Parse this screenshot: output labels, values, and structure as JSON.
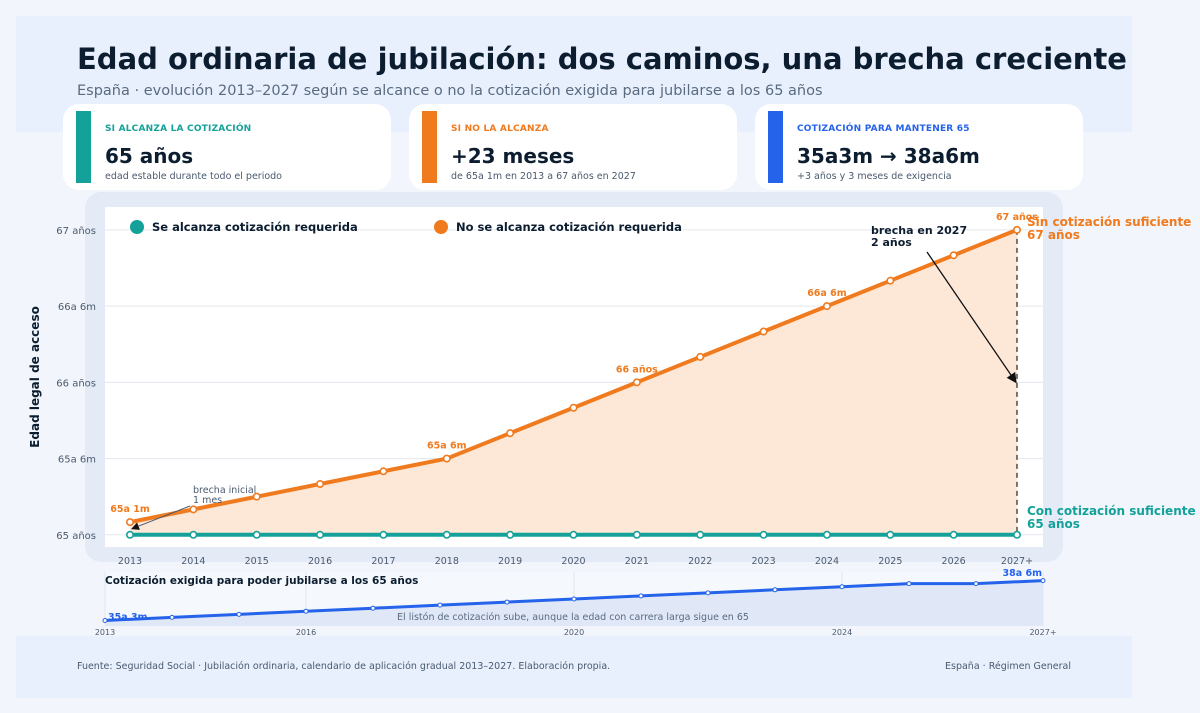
{
  "header": {
    "title": "Edad ordinaria de jubilación: dos caminos, una brecha creciente",
    "subtitle": "España · evolución 2013–2027 según se alcance o no la cotización exigida para jubilarse a los 65 años"
  },
  "cards": [
    {
      "kicker": "SI ALCANZA LA COTIZACIÓN",
      "value": "65 años",
      "note": "edad estable durante todo el periodo",
      "color": "#14a19a"
    },
    {
      "kicker": "SI NO LA ALCANZA",
      "value": "+23 meses",
      "note": "de 65a 1m en 2013 a 67 años en 2027",
      "color": "#f07a1e"
    },
    {
      "kicker": "COTIZACIÓN PARA MANTENER 65",
      "value": "35a3m → 38a6m",
      "note": "+3 años y 3 meses de exigencia",
      "color": "#2563eb"
    }
  ],
  "footer": {
    "source": "Fuente: Seguridad Social · Jubilación ordinaria, calendario de aplicación gradual 2013–2027. Elaboración propia.",
    "scope": "España · Régimen General"
  },
  "chart_data": [
    {
      "type": "line",
      "ylabel": "Edad legal de acceso",
      "x": [
        "2013",
        "2014",
        "2015",
        "2016",
        "2017",
        "2018",
        "2019",
        "2020",
        "2021",
        "2022",
        "2023",
        "2024",
        "2025",
        "2026",
        "2027+"
      ],
      "y_unit": "years",
      "ylim": [
        64.92,
        67.15
      ],
      "yticks": [
        {
          "value": 65,
          "label": "65 años"
        },
        {
          "value": 65.5,
          "label": "65a 6m"
        },
        {
          "value": 66,
          "label": "66 años"
        },
        {
          "value": 66.5,
          "label": "66a 6m"
        },
        {
          "value": 67,
          "label": "67 años"
        }
      ],
      "grid": true,
      "legend_position": "top-left",
      "series": [
        {
          "name": "Se alcanza cotización requerida",
          "color": "#14a19a",
          "values": [
            65,
            65,
            65,
            65,
            65,
            65,
            65,
            65,
            65,
            65,
            65,
            65,
            65,
            65,
            65
          ]
        },
        {
          "name": "No se alcanza cotización requerida",
          "color": "#f07a1e",
          "values": [
            65.0833,
            65.1667,
            65.25,
            65.3333,
            65.4167,
            65.5,
            65.6667,
            65.8333,
            66,
            66.1667,
            66.3333,
            66.5,
            66.6667,
            66.8333,
            67
          ]
        }
      ],
      "point_labels": [
        {
          "x": "2013",
          "series": 1,
          "text": "65a 1m"
        },
        {
          "x": "2018",
          "series": 1,
          "text": "65a 6m"
        },
        {
          "x": "2021",
          "series": 1,
          "text": "66 años"
        },
        {
          "x": "2024",
          "series": 1,
          "text": "66a 6m"
        },
        {
          "x": "2027+",
          "series": 1,
          "text": "67 años"
        }
      ],
      "end_labels": [
        {
          "series": 1,
          "line1": "Sin cotización suficiente",
          "line2": "67 años"
        },
        {
          "series": 0,
          "line1": "Con cotización suficiente",
          "line2": "65 años"
        }
      ],
      "annotations": [
        {
          "text": "brecha en 2027",
          "text2": "2 años"
        },
        {
          "text": "brecha inicial",
          "text2": "1 mes"
        }
      ]
    },
    {
      "type": "area",
      "title": "Cotización exigida para poder jubilarse a los 65 años",
      "note": "El listón de cotización sube, aunque la edad con carrera larga sigue en 65",
      "x": [
        2013,
        2014,
        2015,
        2016,
        2017,
        2018,
        2019,
        2020,
        2021,
        2022,
        2023,
        2024,
        2025,
        2026,
        2027
      ],
      "values": [
        35.25,
        35.5,
        35.75,
        36,
        36.25,
        36.5,
        36.75,
        37,
        37.25,
        37.5,
        37.75,
        38,
        38.25,
        38.25,
        38.5
      ],
      "x_tick_labels": [
        {
          "x": 2013,
          "label": "2013"
        },
        {
          "x": 2016,
          "label": "2016"
        },
        {
          "x": 2020,
          "label": "2020"
        },
        {
          "x": 2024,
          "label": "2024"
        },
        {
          "x": 2027,
          "label": "2027+"
        }
      ],
      "start_label": "35a 3m",
      "end_label": "38a 6m",
      "color": "#2563eb"
    }
  ]
}
